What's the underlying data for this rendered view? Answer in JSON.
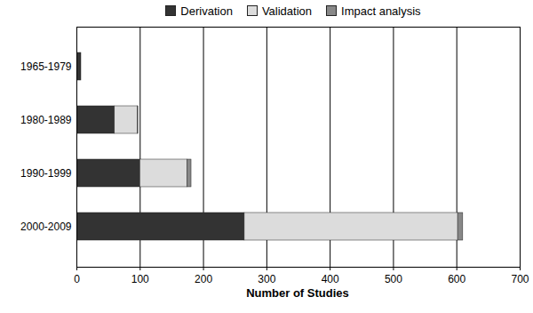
{
  "chart_data": {
    "type": "bar",
    "orientation": "horizontal",
    "stacked": true,
    "categories": [
      "1965-1979",
      "1980-1989",
      "1990-1999",
      "2000-2009"
    ],
    "series": [
      {
        "name": "Derivation",
        "color": "#333333",
        "values": [
          7,
          60,
          100,
          265
        ]
      },
      {
        "name": "Validation",
        "color": "#dcdcdc",
        "values": [
          0,
          36,
          75,
          337
        ]
      },
      {
        "name": "Impact analysis",
        "color": "#888888",
        "values": [
          0,
          1,
          6,
          8
        ]
      }
    ],
    "x_label": "Number of Studies",
    "xlim": [
      0,
      700
    ],
    "xticks": [
      0,
      100,
      200,
      300,
      400,
      500,
      600,
      700
    ],
    "grid": true,
    "legend": "top"
  }
}
